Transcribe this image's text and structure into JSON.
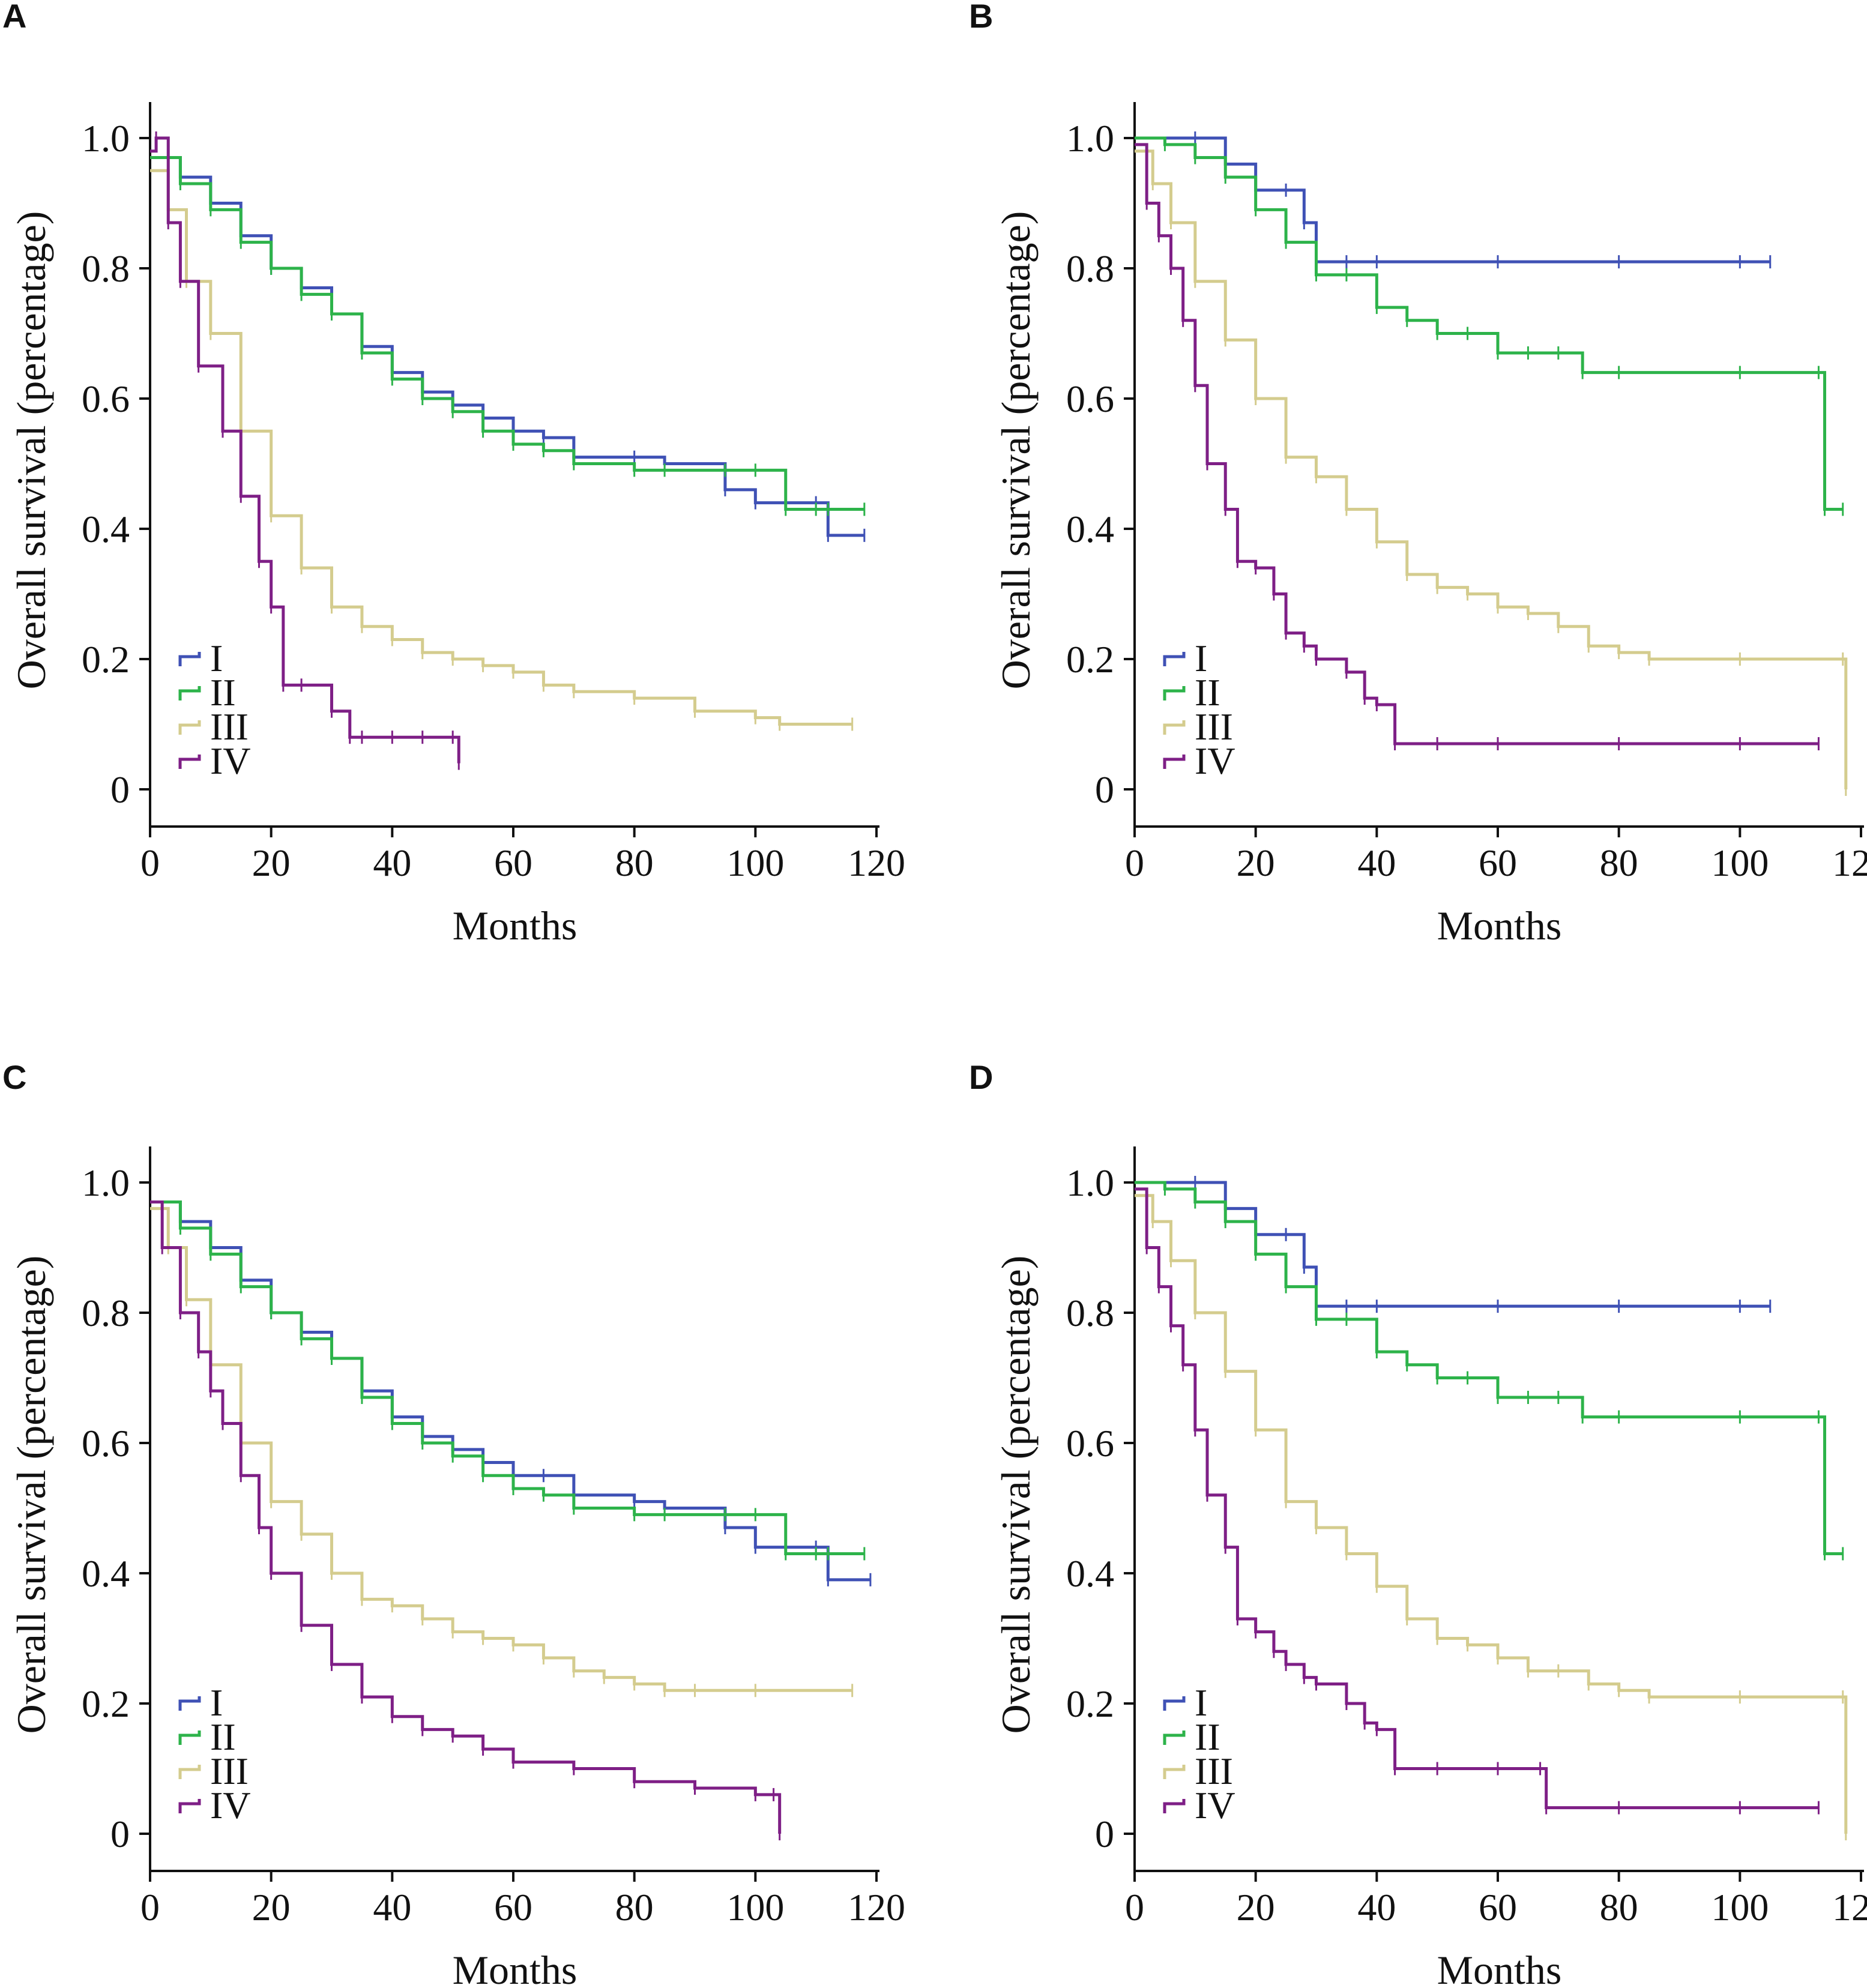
{
  "figure": {
    "series_colors": {
      "I": "#3f51b5",
      "II": "#2db34a",
      "III": "#d4cc8e",
      "IV": "#7e1f86"
    }
  },
  "chart_data": [
    {
      "panel": "A",
      "type": "line",
      "title": "",
      "xlabel": "Months",
      "ylabel": "Overall survival (percentage)",
      "xlim": [
        0,
        120
      ],
      "ylim": [
        0,
        1.0
      ],
      "xticks": [
        "0",
        "20",
        "40",
        "60",
        "80",
        "100",
        "120"
      ],
      "yticks": [
        "0",
        "0.2",
        "0.4",
        "0.6",
        "0.8",
        "1.0"
      ],
      "legend": [
        "I",
        "II",
        "III",
        "IV"
      ],
      "series": [
        {
          "name": "I",
          "x": [
            0,
            5,
            10,
            15,
            20,
            25,
            30,
            35,
            40,
            45,
            50,
            55,
            60,
            65,
            70,
            80,
            85,
            95,
            100,
            105,
            110,
            112,
            118
          ],
          "y": [
            0.97,
            0.94,
            0.9,
            0.85,
            0.8,
            0.77,
            0.73,
            0.68,
            0.64,
            0.61,
            0.59,
            0.57,
            0.55,
            0.54,
            0.51,
            0.51,
            0.5,
            0.46,
            0.44,
            0.44,
            0.44,
            0.39,
            0.39
          ]
        },
        {
          "name": "II",
          "x": [
            0,
            5,
            10,
            15,
            20,
            25,
            30,
            35,
            40,
            45,
            50,
            55,
            60,
            65,
            70,
            80,
            85,
            95,
            100,
            105,
            110,
            112,
            118
          ],
          "y": [
            0.97,
            0.93,
            0.89,
            0.84,
            0.8,
            0.76,
            0.73,
            0.67,
            0.63,
            0.6,
            0.58,
            0.55,
            0.53,
            0.52,
            0.5,
            0.49,
            0.49,
            0.49,
            0.49,
            0.43,
            0.43,
            0.43,
            0.43
          ]
        },
        {
          "name": "III",
          "x": [
            0,
            3,
            6,
            10,
            15,
            20,
            25,
            30,
            35,
            40,
            45,
            50,
            55,
            60,
            65,
            70,
            80,
            90,
            100,
            104,
            116
          ],
          "y": [
            0.95,
            0.89,
            0.78,
            0.7,
            0.55,
            0.42,
            0.34,
            0.28,
            0.25,
            0.23,
            0.21,
            0.2,
            0.19,
            0.18,
            0.16,
            0.15,
            0.14,
            0.12,
            0.11,
            0.1,
            0.1
          ]
        },
        {
          "name": "IV",
          "x": [
            0,
            1,
            3,
            5,
            8,
            12,
            15,
            18,
            20,
            22,
            25,
            30,
            33,
            35,
            40,
            45,
            50,
            51
          ],
          "y": [
            0.98,
            1.0,
            0.87,
            0.78,
            0.65,
            0.55,
            0.45,
            0.35,
            0.28,
            0.16,
            0.16,
            0.12,
            0.08,
            0.08,
            0.08,
            0.08,
            0.08,
            0.04
          ]
        }
      ]
    },
    {
      "panel": "B",
      "type": "line",
      "title": "",
      "xlabel": "Months",
      "ylabel": "Overall survival (percentage)",
      "xlim": [
        0,
        120
      ],
      "ylim": [
        0,
        1.0
      ],
      "xticks": [
        "0",
        "20",
        "40",
        "60",
        "80",
        "100",
        "120"
      ],
      "yticks": [
        "0",
        "0.2",
        "0.4",
        "0.6",
        "0.8",
        "1.0"
      ],
      "legend": [
        "I",
        "II",
        "III",
        "IV"
      ],
      "series": [
        {
          "name": "I",
          "x": [
            0,
            10,
            15,
            20,
            25,
            28,
            30,
            35,
            40,
            60,
            80,
            100,
            105
          ],
          "y": [
            1.0,
            1.0,
            0.96,
            0.92,
            0.92,
            0.87,
            0.81,
            0.81,
            0.81,
            0.81,
            0.81,
            0.81,
            0.81
          ]
        },
        {
          "name": "II",
          "x": [
            0,
            5,
            10,
            15,
            20,
            25,
            30,
            35,
            40,
            45,
            50,
            55,
            60,
            65,
            70,
            74,
            80,
            100,
            113,
            114,
            117
          ],
          "y": [
            1.0,
            0.99,
            0.97,
            0.94,
            0.89,
            0.84,
            0.79,
            0.79,
            0.74,
            0.72,
            0.7,
            0.7,
            0.67,
            0.67,
            0.67,
            0.64,
            0.64,
            0.64,
            0.64,
            0.43,
            0.43
          ]
        },
        {
          "name": "III",
          "x": [
            0,
            3,
            6,
            10,
            15,
            20,
            25,
            30,
            35,
            40,
            45,
            50,
            55,
            60,
            65,
            70,
            75,
            80,
            85,
            100,
            117,
            117.5
          ],
          "y": [
            0.98,
            0.93,
            0.87,
            0.78,
            0.69,
            0.6,
            0.51,
            0.48,
            0.43,
            0.38,
            0.33,
            0.31,
            0.3,
            0.28,
            0.27,
            0.25,
            0.22,
            0.21,
            0.2,
            0.2,
            0.2,
            0.0
          ]
        },
        {
          "name": "IV",
          "x": [
            0,
            2,
            4,
            6,
            8,
            10,
            12,
            15,
            17,
            20,
            23,
            25,
            28,
            30,
            35,
            38,
            40,
            43,
            50,
            60,
            80,
            100,
            113
          ],
          "y": [
            0.99,
            0.9,
            0.85,
            0.8,
            0.72,
            0.62,
            0.5,
            0.43,
            0.35,
            0.34,
            0.3,
            0.24,
            0.22,
            0.2,
            0.18,
            0.14,
            0.13,
            0.07,
            0.07,
            0.07,
            0.07,
            0.07,
            0.07
          ]
        }
      ]
    },
    {
      "panel": "C",
      "type": "line",
      "title": "",
      "xlabel": "Months",
      "ylabel": "Overall survival (percentage)",
      "xlim": [
        0,
        120
      ],
      "ylim": [
        0,
        1.0
      ],
      "xticks": [
        "0",
        "20",
        "40",
        "60",
        "80",
        "100",
        "120"
      ],
      "yticks": [
        "0",
        "0.2",
        "0.4",
        "0.6",
        "0.8",
        "1.0"
      ],
      "legend": [
        "I",
        "II",
        "III",
        "IV"
      ],
      "series": [
        {
          "name": "I",
          "x": [
            0,
            5,
            10,
            15,
            20,
            25,
            30,
            35,
            40,
            45,
            50,
            55,
            60,
            65,
            70,
            80,
            85,
            95,
            100,
            105,
            110,
            112,
            119
          ],
          "y": [
            0.97,
            0.94,
            0.9,
            0.85,
            0.8,
            0.77,
            0.73,
            0.68,
            0.64,
            0.61,
            0.59,
            0.57,
            0.55,
            0.55,
            0.52,
            0.51,
            0.5,
            0.47,
            0.44,
            0.44,
            0.44,
            0.39,
            0.39
          ]
        },
        {
          "name": "II",
          "x": [
            0,
            5,
            10,
            15,
            20,
            25,
            30,
            35,
            40,
            45,
            50,
            55,
            60,
            65,
            70,
            80,
            85,
            95,
            100,
            105,
            110,
            112,
            118
          ],
          "y": [
            0.97,
            0.93,
            0.89,
            0.84,
            0.8,
            0.76,
            0.73,
            0.67,
            0.63,
            0.6,
            0.58,
            0.55,
            0.53,
            0.52,
            0.5,
            0.49,
            0.49,
            0.49,
            0.49,
            0.43,
            0.43,
            0.43,
            0.43
          ]
        },
        {
          "name": "III",
          "x": [
            0,
            3,
            6,
            10,
            15,
            20,
            25,
            30,
            35,
            40,
            45,
            50,
            55,
            60,
            65,
            70,
            75,
            80,
            85,
            90,
            100,
            116
          ],
          "y": [
            0.96,
            0.9,
            0.82,
            0.72,
            0.6,
            0.51,
            0.46,
            0.4,
            0.36,
            0.35,
            0.33,
            0.31,
            0.3,
            0.29,
            0.27,
            0.25,
            0.24,
            0.23,
            0.22,
            0.22,
            0.22,
            0.22
          ]
        },
        {
          "name": "IV",
          "x": [
            0,
            2,
            5,
            8,
            10,
            12,
            15,
            18,
            20,
            25,
            30,
            35,
            40,
            45,
            50,
            55,
            60,
            70,
            80,
            90,
            100,
            103,
            104
          ],
          "y": [
            0.97,
            0.9,
            0.8,
            0.74,
            0.68,
            0.63,
            0.55,
            0.47,
            0.4,
            0.32,
            0.26,
            0.21,
            0.18,
            0.16,
            0.15,
            0.13,
            0.11,
            0.1,
            0.08,
            0.07,
            0.06,
            0.06,
            0.0
          ]
        }
      ]
    },
    {
      "panel": "D",
      "type": "line",
      "title": "",
      "xlabel": "Months",
      "ylabel": "Overall survival (percentage)",
      "xlim": [
        0,
        120
      ],
      "ylim": [
        0,
        1.0
      ],
      "xticks": [
        "0",
        "20",
        "40",
        "60",
        "80",
        "100",
        "120"
      ],
      "yticks": [
        "0",
        "0.2",
        "0.4",
        "0.6",
        "0.8",
        "1.0"
      ],
      "legend": [
        "I",
        "II",
        "III",
        "IV"
      ],
      "series": [
        {
          "name": "I",
          "x": [
            0,
            10,
            15,
            20,
            25,
            28,
            30,
            35,
            40,
            60,
            80,
            100,
            105
          ],
          "y": [
            1.0,
            1.0,
            0.96,
            0.92,
            0.92,
            0.87,
            0.81,
            0.81,
            0.81,
            0.81,
            0.81,
            0.81,
            0.81
          ]
        },
        {
          "name": "II",
          "x": [
            0,
            5,
            10,
            15,
            20,
            25,
            30,
            35,
            40,
            45,
            50,
            55,
            60,
            65,
            70,
            74,
            80,
            100,
            113,
            114,
            117
          ],
          "y": [
            1.0,
            0.99,
            0.97,
            0.94,
            0.89,
            0.84,
            0.79,
            0.79,
            0.74,
            0.72,
            0.7,
            0.7,
            0.67,
            0.67,
            0.67,
            0.64,
            0.64,
            0.64,
            0.64,
            0.43,
            0.43
          ]
        },
        {
          "name": "III",
          "x": [
            0,
            3,
            6,
            10,
            15,
            20,
            25,
            30,
            35,
            40,
            45,
            50,
            55,
            60,
            65,
            70,
            75,
            80,
            85,
            100,
            117,
            117.5
          ],
          "y": [
            0.98,
            0.94,
            0.88,
            0.8,
            0.71,
            0.62,
            0.51,
            0.47,
            0.43,
            0.38,
            0.33,
            0.3,
            0.29,
            0.27,
            0.25,
            0.25,
            0.23,
            0.22,
            0.21,
            0.21,
            0.21,
            0.0
          ]
        },
        {
          "name": "IV",
          "x": [
            0,
            2,
            4,
            6,
            8,
            10,
            12,
            15,
            17,
            20,
            23,
            25,
            28,
            30,
            35,
            38,
            40,
            43,
            50,
            60,
            67,
            68,
            80,
            100,
            113
          ],
          "y": [
            0.99,
            0.9,
            0.84,
            0.78,
            0.72,
            0.62,
            0.52,
            0.44,
            0.33,
            0.31,
            0.28,
            0.26,
            0.24,
            0.23,
            0.2,
            0.17,
            0.16,
            0.1,
            0.1,
            0.1,
            0.1,
            0.04,
            0.04,
            0.04,
            0.04
          ]
        }
      ]
    }
  ]
}
